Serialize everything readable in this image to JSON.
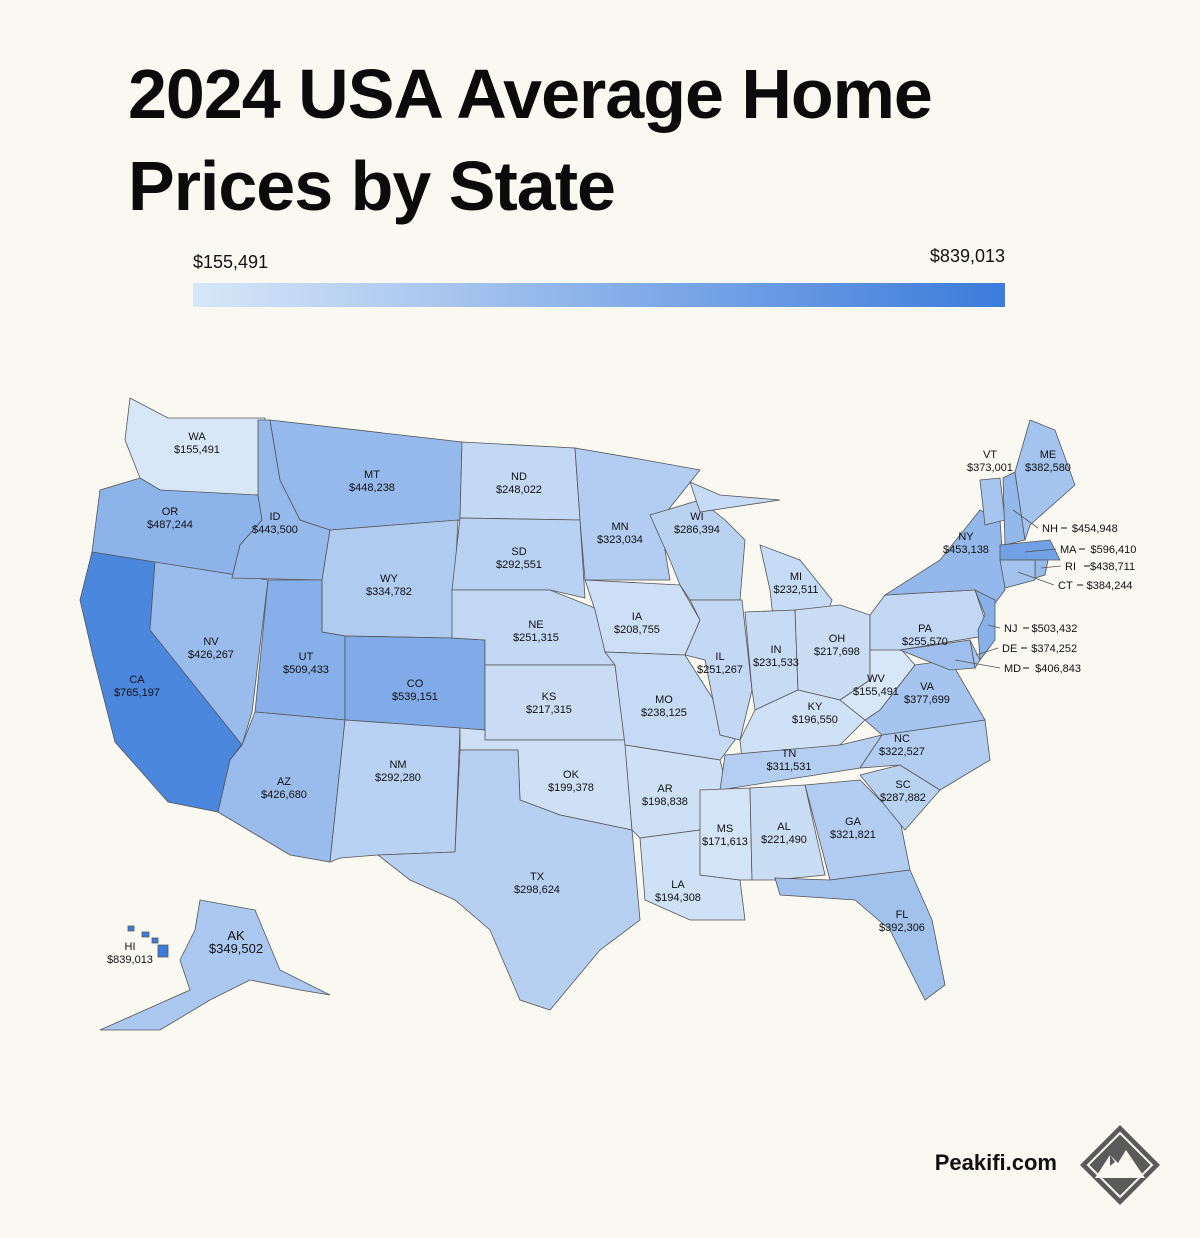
{
  "chart_data": {
    "type": "choropleth",
    "title": "2024 USA Average Home Prices by State",
    "categories": [
      "WA",
      "OR",
      "CA",
      "NV",
      "ID",
      "MT",
      "WY",
      "UT",
      "CO",
      "AZ",
      "NM",
      "ND",
      "SD",
      "NE",
      "KS",
      "OK",
      "TX",
      "MN",
      "IA",
      "MO",
      "AR",
      "LA",
      "WI",
      "IL",
      "MI",
      "IN",
      "OH",
      "KY",
      "TN",
      "MS",
      "AL",
      "GA",
      "FL",
      "SC",
      "NC",
      "VA",
      "WV",
      "PA",
      "NY",
      "VT",
      "NH",
      "ME",
      "MA",
      "RI",
      "CT",
      "NJ",
      "DE",
      "MD",
      "AK",
      "HI"
    ],
    "values": [
      155491,
      487244,
      765197,
      426267,
      443500,
      448238,
      334782,
      509433,
      539151,
      426680,
      292280,
      248022,
      292551,
      251315,
      217315,
      199378,
      298624,
      323034,
      208755,
      238125,
      198838,
      194308,
      286394,
      251267,
      232511,
      231533,
      217698,
      196550,
      311531,
      171613,
      221490,
      321821,
      392306,
      287882,
      322527,
      377699,
      155491,
      255570,
      453138,
      373001,
      454948,
      382580,
      596410,
      438711,
      384244,
      503432,
      374252,
      406843,
      349502,
      839013
    ],
    "value_labels": [
      "$155,491",
      "$487,244",
      "$765,197",
      "$426,267",
      "$443,500",
      "$448,238",
      "$334,782",
      "$509,433",
      "$539,151",
      "$426,680",
      "$292,280",
      "$248,022",
      "$292,551",
      "$251,315",
      "$217,315",
      "$199,378",
      "$298,624",
      "$323,034",
      "$208,755",
      "$238,125",
      "$198,838",
      "$194,308",
      "$286,394",
      "$251,267",
      "$232,511",
      "$231,533",
      "$217,698",
      "$196,550",
      "$311,531",
      "$171,613",
      "$221,490",
      "$321,821",
      "$392,306",
      "$287,882",
      "$322,527",
      "$377,699",
      "$155,491",
      "$255,570",
      "$453,138",
      "$373,001",
      "$454,948",
      "$382,580",
      "$596,410",
      "$438,711",
      "$384,244",
      "$503,432",
      "$374,252",
      "$406,843",
      "$349,502",
      "$839,013"
    ],
    "colorscale": {
      "min": 155491,
      "max": 839013,
      "min_label": "$155,491",
      "max_label": "$839,013",
      "min_color": "#d8e7f8",
      "max_color": "#3b7bdb"
    },
    "source": "Peakifi.com"
  }
}
